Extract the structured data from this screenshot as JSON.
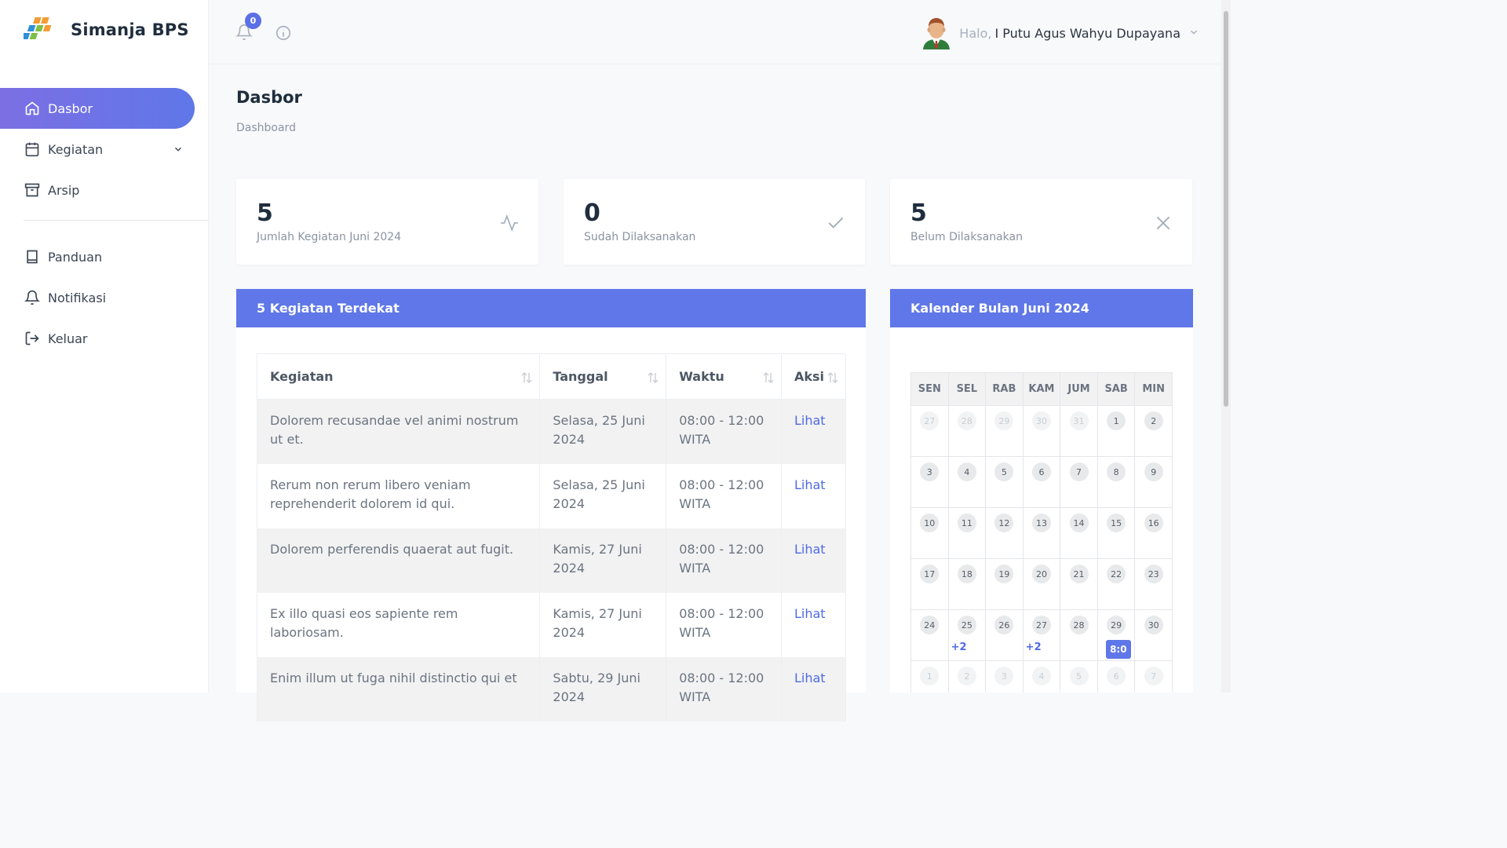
{
  "brand": {
    "title": "Simanja BPS",
    "logo": "bps-logo"
  },
  "sidebar": {
    "items": [
      {
        "label": "Dasbor",
        "icon": "home-icon",
        "active": true
      },
      {
        "label": "Kegiatan",
        "icon": "calendar-icon",
        "has_submenu": true
      },
      {
        "label": "Arsip",
        "icon": "archive-icon"
      },
      {
        "label": "Panduan",
        "icon": "book-icon"
      },
      {
        "label": "Notifikasi",
        "icon": "bell-icon"
      },
      {
        "label": "Keluar",
        "icon": "logout-icon"
      }
    ]
  },
  "header": {
    "notification_count": "0",
    "greeting": "Halo,",
    "user_name": "I Putu Agus Wahyu Dupayana"
  },
  "page": {
    "title": "Dasbor",
    "breadcrumb": "Dashboard"
  },
  "stats": [
    {
      "value": "5",
      "label": "Jumlah Kegiatan Juni 2024",
      "icon": "activity-icon"
    },
    {
      "value": "0",
      "label": "Sudah Dilaksanakan",
      "icon": "check-icon"
    },
    {
      "value": "5",
      "label": "Belum Dilaksanakan",
      "icon": "x-icon"
    }
  ],
  "events_card": {
    "title": "5 Kegiatan Terdekat",
    "columns": [
      "Kegiatan",
      "Tanggal",
      "Waktu",
      "Aksi"
    ],
    "rows": [
      {
        "kegiatan": "Dolorem recusandae vel animi nostrum ut et.",
        "tanggal": "Selasa, 25 Juni 2024",
        "waktu": "08:00 - 12:00 WITA",
        "aksi": "Lihat"
      },
      {
        "kegiatan": "Rerum non rerum libero veniam reprehenderit dolorem id qui.",
        "tanggal": "Selasa, 25 Juni 2024",
        "waktu": "08:00 - 12:00 WITA",
        "aksi": "Lihat"
      },
      {
        "kegiatan": "Dolorem perferendis quaerat aut fugit.",
        "tanggal": "Kamis, 27 Juni 2024",
        "waktu": "08:00 - 12:00 WITA",
        "aksi": "Lihat"
      },
      {
        "kegiatan": "Ex illo quasi eos sapiente rem laboriosam.",
        "tanggal": "Kamis, 27 Juni 2024",
        "waktu": "08:00 - 12:00 WITA",
        "aksi": "Lihat"
      },
      {
        "kegiatan": "Enim illum ut fuga nihil distinctio qui et",
        "tanggal": "Sabtu, 29 Juni 2024",
        "waktu": "08:00 - 12:00 WITA",
        "aksi": "Lihat"
      }
    ]
  },
  "calendar": {
    "title": "Kalender Bulan Juni 2024",
    "weekdays": [
      "SEN",
      "SEL",
      "RAB",
      "KAM",
      "JUM",
      "SAB",
      "MIN"
    ],
    "weeks": [
      [
        {
          "d": "27",
          "m": true
        },
        {
          "d": "28",
          "m": true
        },
        {
          "d": "29",
          "m": true
        },
        {
          "d": "30",
          "m": true
        },
        {
          "d": "31",
          "m": true
        },
        {
          "d": "1"
        },
        {
          "d": "2"
        }
      ],
      [
        {
          "d": "3"
        },
        {
          "d": "4"
        },
        {
          "d": "5"
        },
        {
          "d": "6"
        },
        {
          "d": "7"
        },
        {
          "d": "8"
        },
        {
          "d": "9"
        }
      ],
      [
        {
          "d": "10"
        },
        {
          "d": "11"
        },
        {
          "d": "12"
        },
        {
          "d": "13"
        },
        {
          "d": "14"
        },
        {
          "d": "15"
        },
        {
          "d": "16"
        }
      ],
      [
        {
          "d": "17"
        },
        {
          "d": "18"
        },
        {
          "d": "19"
        },
        {
          "d": "20"
        },
        {
          "d": "21"
        },
        {
          "d": "22"
        },
        {
          "d": "23"
        }
      ],
      [
        {
          "d": "24"
        },
        {
          "d": "25",
          "more": "+2"
        },
        {
          "d": "26"
        },
        {
          "d": "27",
          "more": "+2"
        },
        {
          "d": "28"
        },
        {
          "d": "29",
          "event": "8:0"
        },
        {
          "d": "30"
        }
      ],
      [
        {
          "d": "1",
          "m": true
        },
        {
          "d": "2",
          "m": true
        },
        {
          "d": "3",
          "m": true
        },
        {
          "d": "4",
          "m": true
        },
        {
          "d": "5",
          "m": true
        },
        {
          "d": "6",
          "m": true
        },
        {
          "d": "7",
          "m": true
        }
      ]
    ]
  },
  "colors": {
    "accent": "#5f77e8",
    "accent_gradient_start": "#7c6fe3",
    "link": "#4f6ae6"
  }
}
